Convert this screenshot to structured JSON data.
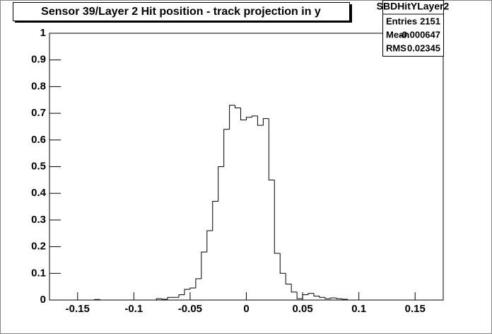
{
  "chart_data": {
    "type": "histogram",
    "title": "Sensor 39/Layer 2 Hit position - track projection in y",
    "stats": {
      "name": "SBDHitYLayer2",
      "rows": [
        [
          "Entries",
          2151
        ],
        [
          "Mean",
          -0.000647
        ],
        [
          "RMS",
          0.02345
        ]
      ]
    },
    "bins": [
      -0.175,
      -0.17,
      -0.165,
      -0.16,
      -0.155,
      -0.15,
      -0.145,
      -0.14,
      -0.135,
      -0.13,
      -0.125,
      -0.12,
      -0.115,
      -0.11,
      -0.105,
      -0.1,
      -0.095,
      -0.09,
      -0.085,
      -0.08,
      -0.075,
      -0.07,
      -0.065,
      -0.06,
      -0.055,
      -0.05,
      -0.045,
      -0.04,
      -0.035,
      -0.03,
      -0.025,
      -0.02,
      -0.015,
      -0.01,
      -0.005,
      0,
      0.005,
      0.01,
      0.015,
      0.02,
      0.025,
      0.03,
      0.035,
      0.04,
      0.045,
      0.05,
      0.055,
      0.06,
      0.065,
      0.07,
      0.075,
      0.08,
      0.085,
      0.09,
      0.095,
      0.1,
      0.105,
      0.11,
      0.115,
      0.12,
      0.125,
      0.13,
      0.135,
      0.14,
      0.145,
      0.15,
      0.155,
      0.16,
      0.165,
      0.17,
      0.175
    ],
    "values": [
      0,
      0,
      0,
      0,
      0,
      0,
      0,
      0,
      0.002,
      0,
      0,
      0,
      0,
      0,
      0,
      0,
      0,
      0,
      0,
      0.005,
      0.003,
      0.01,
      0.01,
      0.02,
      0.04,
      0.045,
      0.08,
      0.18,
      0.26,
      0.37,
      0.5,
      0.64,
      0.73,
      0.72,
      0.675,
      0.685,
      0.69,
      0.655,
      0.68,
      0.45,
      0.175,
      0.1,
      0.06,
      0.03,
      0.005,
      0.02,
      0.025,
      0.015,
      0.01,
      0.005,
      0.008,
      0.005,
      0.003,
      0,
      0,
      0,
      0,
      0,
      0,
      0,
      0,
      0,
      0,
      0,
      0,
      0,
      0,
      0,
      0,
      0
    ],
    "color": "#000000",
    "xlim": [
      -0.175,
      0.175
    ],
    "xticks": [
      -0.15,
      -0.1,
      -0.05,
      0,
      0.05,
      0.1,
      0.15
    ],
    "ylim": [
      0,
      1
    ],
    "yticks": [
      0,
      0.1,
      0.2,
      0.3,
      0.4,
      0.5,
      0.6,
      0.7,
      0.8,
      0.9,
      1
    ]
  }
}
